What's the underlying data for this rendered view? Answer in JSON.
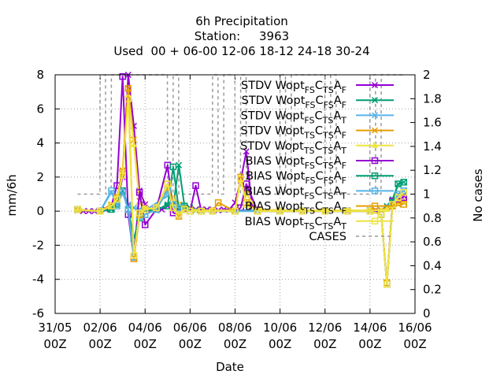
{
  "chart_data": {
    "type": "line",
    "title": [
      "6h Precipitation",
      "Station:     3963",
      "Used  00 + 06-00 12-06 18-12 24-18 30-24"
    ],
    "xlabel": "Date",
    "ylabel": "mm/6h",
    "y2label": "No cases",
    "xlim": [
      0,
      16
    ],
    "ylim": [
      -6,
      8
    ],
    "y2lim": [
      0,
      2
    ],
    "grid": true,
    "legend_position": "top-right",
    "x_ticks": [
      {
        "x": 0,
        "line1": "31/05",
        "line2": "00Z"
      },
      {
        "x": 2,
        "line1": "02/06",
        "line2": "00Z"
      },
      {
        "x": 4,
        "line1": "04/06",
        "line2": "00Z"
      },
      {
        "x": 6,
        "line1": "06/06",
        "line2": "00Z"
      },
      {
        "x": 8,
        "line1": "08/06",
        "line2": "00Z"
      },
      {
        "x": 10,
        "line1": "10/06",
        "line2": "00Z"
      },
      {
        "x": 12,
        "line1": "12/06",
        "line2": "00Z"
      },
      {
        "x": 14,
        "line1": "14/06",
        "line2": "00Z"
      },
      {
        "x": 16,
        "line1": "16/06",
        "line2": "00Z"
      }
    ],
    "y_ticks": [
      -6,
      -4,
      -2,
      0,
      2,
      4,
      6,
      8
    ],
    "y2_ticks": [
      0,
      0.2,
      0.4,
      0.6,
      0.8,
      1,
      1.2,
      1.4,
      1.6,
      1.8,
      2
    ],
    "legend": [
      {
        "name": "STDV Wopt FS C TS A F",
        "main": "STDV Wopt",
        "s1": "FS",
        "m2": "C",
        "s2": "TS",
        "m3": "A",
        "s3": "F",
        "color": "#9400d3",
        "marker": "x",
        "kind": "stdv"
      },
      {
        "name": "STDV Wopt FS C FS A F",
        "main": "STDV Wopt",
        "s1": "FS",
        "m2": "C",
        "s2": "FS",
        "m3": "A",
        "s3": "F",
        "color": "#009e73",
        "marker": "x",
        "kind": "stdv"
      },
      {
        "name": "STDV Wopt FS C TS A T",
        "main": "STDV Wopt",
        "s1": "FS",
        "m2": "C",
        "s2": "TS",
        "m3": "A",
        "s3": "T",
        "color": "#56b4e9",
        "marker": "x",
        "kind": "stdv"
      },
      {
        "name": "STDV Wopt TS C TS A F",
        "main": "STDV Wopt",
        "s1": "TS",
        "m2": "C",
        "s2": "TS",
        "m3": "A",
        "s3": "F",
        "color": "#e69f00",
        "marker": "x",
        "kind": "stdv"
      },
      {
        "name": "STDV Wopt TS C TS A T",
        "main": "STDV Wopt",
        "s1": "TS",
        "m2": "C",
        "s2": "TS",
        "m3": "A",
        "s3": "T",
        "color": "#f0e442",
        "marker": "triangle",
        "kind": "stdv"
      },
      {
        "name": "BIAS Wopt FS C TS A F",
        "main": "BIAS Wopt",
        "s1": "FS",
        "m2": "C",
        "s2": "TS",
        "m3": "A",
        "s3": "F",
        "color": "#9400d3",
        "marker": "square",
        "kind": "bias"
      },
      {
        "name": "BIAS Wopt FS C FS A F",
        "main": "BIAS Wopt",
        "s1": "FS",
        "m2": "C",
        "s2": "FS",
        "m3": "A",
        "s3": "F",
        "color": "#009e73",
        "marker": "square",
        "kind": "bias"
      },
      {
        "name": "BIAS Wopt FS C TS A T",
        "main": "BIAS Wopt",
        "s1": "FS",
        "m2": "C",
        "s2": "TS",
        "m3": "A",
        "s3": "T",
        "color": "#56b4e9",
        "marker": "square",
        "kind": "bias"
      },
      {
        "name": "BIAS Wopt TS C TS A F",
        "main": "BIAS Wopt",
        "s1": "TS",
        "m2": "C",
        "s2": "TS",
        "m3": "A",
        "s3": "F",
        "color": "#e69f00",
        "marker": "square",
        "kind": "bias"
      },
      {
        "name": "BIAS Wopt TS C TS A T",
        "main": "BIAS Wopt",
        "s1": "TS",
        "m2": "C",
        "s2": "TS",
        "m3": "A",
        "s3": "T",
        "color": "#f0e442",
        "marker": "square",
        "kind": "bias"
      },
      {
        "name": "CASES",
        "main": "CASES",
        "color": "#999999",
        "marker": "none",
        "kind": "cases"
      }
    ],
    "series": [
      {
        "name": "STDV Wopt FS C TS A F",
        "color": "#9400d3",
        "marker": "x",
        "x": [
          1,
          1.25,
          1.5,
          1.75,
          2,
          2.25,
          2.5,
          2.75,
          3,
          3.25,
          3.5,
          3.75,
          4,
          4.25,
          4.5,
          4.75,
          5,
          5.25,
          5.5,
          5.75,
          6,
          6.25,
          6.5,
          6.75,
          7,
          7.25,
          7.5,
          7.75,
          8,
          8.25,
          8.5,
          8.75,
          9,
          10,
          11,
          12,
          13,
          14,
          14.25,
          14.5,
          14.75,
          15,
          15.25,
          15.5
        ],
        "y": [
          0.05,
          0,
          0,
          0,
          0,
          0.1,
          0.2,
          0.5,
          2.0,
          8.0,
          5.0,
          1.2,
          0.4,
          0.1,
          0.1,
          0.1,
          0.3,
          0.5,
          0.2,
          0.1,
          0.2,
          0.1,
          0.1,
          0.1,
          0.1,
          0.05,
          0.1,
          0.1,
          0.5,
          1.8,
          3.5,
          0.3,
          0.1,
          0.05,
          0.05,
          0.05,
          0.05,
          0.05,
          0.05,
          0.05,
          0.2,
          0.6,
          1.0,
          0.9
        ]
      },
      {
        "name": "STDV Wopt FS C FS A F",
        "color": "#009e73",
        "marker": "x",
        "x": [
          1,
          2,
          2.5,
          2.75,
          3,
          3.25,
          3.5,
          3.75,
          4,
          4.5,
          5,
          5.25,
          5.5,
          5.75,
          6,
          6.25,
          6.5,
          7,
          8,
          9,
          10,
          11,
          12,
          13,
          14,
          14.5,
          14.75,
          15,
          15.25,
          15.5
        ],
        "y": [
          0.05,
          0,
          0.1,
          0.5,
          1.2,
          0.3,
          0.2,
          0.1,
          0.05,
          0.05,
          0.4,
          0.3,
          2.7,
          0.3,
          0.2,
          0.05,
          0.05,
          0.05,
          0.05,
          0.05,
          0.05,
          0.05,
          0.05,
          0.05,
          0.05,
          0.05,
          0.3,
          0.7,
          1.6,
          1.7
        ]
      },
      {
        "name": "STDV Wopt FS C TS A T",
        "color": "#56b4e9",
        "marker": "x",
        "x": [
          1,
          2,
          2.5,
          2.75,
          3,
          3.25,
          3.5,
          3.75,
          4,
          5,
          5.25,
          5.5,
          5.75,
          6,
          7,
          8,
          9,
          10,
          11,
          12,
          13,
          14,
          14.5,
          14.75,
          15,
          15.25,
          15.5
        ],
        "y": [
          0.05,
          0,
          1.1,
          0.4,
          1.2,
          0.4,
          0.2,
          0.1,
          0.05,
          0.9,
          0.6,
          0.3,
          0.3,
          0.1,
          0.05,
          0.05,
          0.05,
          0.05,
          0.05,
          0.05,
          0.05,
          0.05,
          0.05,
          0.2,
          0.6,
          1.0,
          1.2
        ]
      },
      {
        "name": "STDV Wopt TS C TS A F",
        "color": "#e69f00",
        "marker": "x",
        "x": [
          1,
          2,
          2.5,
          2.75,
          3,
          3.25,
          3.5,
          3.75,
          4,
          4.5,
          5,
          5.25,
          5.5,
          5.75,
          6,
          6.5,
          7,
          8,
          8.25,
          8.5,
          9,
          10,
          11,
          12,
          13,
          14,
          14.5,
          14.75,
          15,
          15.25,
          15.5
        ],
        "y": [
          0.05,
          0,
          0.4,
          0.8,
          2.4,
          7.2,
          4.2,
          0.6,
          0.2,
          0.1,
          1.3,
          0.8,
          0.4,
          0.2,
          0.1,
          0.05,
          0.05,
          0.05,
          1.9,
          1.0,
          0.1,
          0.05,
          0.05,
          0.05,
          0.05,
          0.05,
          0.05,
          0.2,
          0.4,
          0.4,
          0.5
        ]
      },
      {
        "name": "STDV Wopt TS C TS A T",
        "color": "#f0e442",
        "marker": "triangle",
        "x": [
          1,
          2,
          2.5,
          2.75,
          3,
          3.25,
          3.5,
          3.75,
          4,
          4.5,
          5,
          5.25,
          5.5,
          5.75,
          6,
          6.5,
          7,
          8,
          8.25,
          8.5,
          9,
          10,
          11,
          12,
          13,
          14,
          14.5,
          14.75,
          15,
          15.25,
          15.5
        ],
        "y": [
          0.05,
          0,
          0.3,
          0.7,
          2.2,
          6.8,
          3.9,
          0.5,
          0.2,
          0.1,
          1.5,
          0.7,
          0.4,
          0.2,
          0.1,
          0.05,
          0.05,
          0.05,
          1.8,
          1.0,
          0.1,
          0.05,
          0.05,
          0.05,
          0.05,
          0.05,
          0.05,
          0.1,
          0.3,
          0.5,
          0.6
        ]
      },
      {
        "name": "BIAS Wopt FS C TS A F",
        "color": "#9400d3",
        "marker": "square",
        "x": [
          1,
          2,
          2.5,
          2.75,
          3,
          3.25,
          3.5,
          3.75,
          4,
          4.5,
          5,
          5.25,
          5.5,
          5.75,
          6,
          6.25,
          6.5,
          7,
          8,
          8.25,
          8.5,
          9,
          10,
          11,
          12,
          13,
          14,
          14.5,
          14.75,
          15,
          15.25,
          15.5
        ],
        "y": [
          0.1,
          0,
          0.3,
          1.5,
          7.9,
          -0.2,
          -2.7,
          1.1,
          -0.8,
          0.1,
          2.7,
          -0.1,
          -0.2,
          0.1,
          0,
          1.5,
          0,
          0,
          0,
          0.2,
          1.6,
          0,
          0,
          0,
          0,
          0,
          0,
          -0.2,
          -4.3,
          0.6,
          0.7,
          0.8
        ]
      },
      {
        "name": "BIAS Wopt FS C FS A F",
        "color": "#009e73",
        "marker": "square",
        "x": [
          1,
          2,
          2.5,
          2.75,
          3,
          3.25,
          3.5,
          3.75,
          4,
          4.5,
          5,
          5.25,
          5.5,
          5.75,
          6,
          6.5,
          7,
          8,
          9,
          10,
          11,
          12,
          13,
          14,
          14.5,
          14.75,
          15,
          15.25,
          15.5
        ],
        "y": [
          0.1,
          0,
          0.1,
          0.4,
          1.2,
          0.1,
          -1.6,
          -0.4,
          -0.2,
          0.1,
          0.3,
          2.6,
          0.1,
          0.3,
          0,
          0,
          0,
          0,
          0,
          0,
          0,
          0,
          0,
          0,
          -0.2,
          -4.3,
          0.5,
          1.6,
          1.7
        ]
      },
      {
        "name": "BIAS Wopt FS C TS A T",
        "color": "#56b4e9",
        "marker": "square",
        "x": [
          1,
          2,
          2.5,
          2.75,
          3,
          3.25,
          3.5,
          3.75,
          4,
          4.5,
          5,
          5.25,
          5.5,
          5.75,
          6,
          6.5,
          7,
          8,
          9,
          10,
          11,
          12,
          13,
          14,
          14.5,
          14.75,
          15,
          15.25,
          15.5
        ],
        "y": [
          0.1,
          0,
          1.2,
          0.3,
          1.1,
          0.1,
          -2.7,
          -0.3,
          -0.2,
          0.1,
          1.2,
          0.4,
          0.2,
          0.1,
          0,
          0,
          0,
          0,
          0,
          0,
          0,
          0,
          0,
          0,
          -0.2,
          -4.3,
          0.4,
          1.0,
          1.2
        ]
      },
      {
        "name": "BIAS Wopt TS C TS A F",
        "color": "#e69f00",
        "marker": "square",
        "x": [
          1,
          2,
          2.5,
          2.75,
          3,
          3.25,
          3.5,
          3.75,
          4,
          4.5,
          5,
          5.25,
          5.5,
          5.75,
          6,
          6.5,
          7,
          7.25,
          8,
          8.25,
          8.5,
          9,
          10,
          11,
          12,
          13,
          14,
          14.5,
          14.75,
          15,
          15.25,
          15.5
        ],
        "y": [
          0.1,
          0,
          0.3,
          0.8,
          2.3,
          7.2,
          -2.8,
          -0.2,
          0.1,
          0.2,
          1.6,
          0.2,
          -0.3,
          0.1,
          0,
          0,
          0,
          0.5,
          0,
          2.0,
          0.5,
          0,
          0,
          0,
          0,
          0,
          0,
          -0.2,
          -4.2,
          0.3,
          0.5,
          0.4
        ]
      },
      {
        "name": "BIAS Wopt TS C TS A T",
        "color": "#f0e442",
        "marker": "square",
        "x": [
          1,
          2,
          2.5,
          2.75,
          3,
          3.25,
          3.5,
          3.75,
          4,
          4.5,
          5,
          5.25,
          5.5,
          5.75,
          6,
          6.5,
          7,
          8,
          8.25,
          8.5,
          9,
          10,
          11,
          12,
          13,
          14,
          14.5,
          14.75,
          15,
          15.25,
          15.5
        ],
        "y": [
          0.1,
          0,
          0.3,
          0.7,
          2.1,
          6.6,
          -2.6,
          -0.1,
          0.1,
          0.2,
          1.6,
          0.2,
          -0.2,
          0.1,
          0,
          0,
          0,
          0,
          1.9,
          0.4,
          0,
          0,
          0,
          0,
          0,
          0,
          -0.2,
          -4.3,
          0.4,
          0.8,
          1.1
        ]
      }
    ],
    "cases": {
      "name": "CASES",
      "axis": "y2",
      "color": "#999999",
      "style": "dashed",
      "x": [
        1,
        1.99,
        2,
        2.24,
        2.25,
        2.49,
        2.5,
        4.99,
        5,
        5.24,
        5.25,
        5.49,
        5.5,
        6.99,
        7,
        7.24,
        7.25,
        7.49,
        7.5,
        7.99,
        8,
        8.24,
        8.25,
        8.49,
        8.5,
        9.99,
        10,
        10.24,
        10.25,
        10.49,
        10.5,
        11.99,
        12,
        12.24,
        12.25,
        12.49,
        12.5,
        13.99,
        14,
        14.24,
        14.25,
        14.49,
        14.5,
        15.5
      ],
      "y": [
        1,
        1,
        2,
        2,
        1,
        1,
        2,
        2,
        1,
        1,
        2,
        2,
        1,
        1,
        2,
        2,
        1,
        1,
        2,
        2,
        1,
        1,
        2,
        2,
        1,
        1,
        2,
        2,
        1,
        1,
        2,
        2,
        1,
        1,
        2,
        2,
        1,
        1,
        2,
        2,
        1,
        1,
        2,
        2
      ]
    }
  }
}
